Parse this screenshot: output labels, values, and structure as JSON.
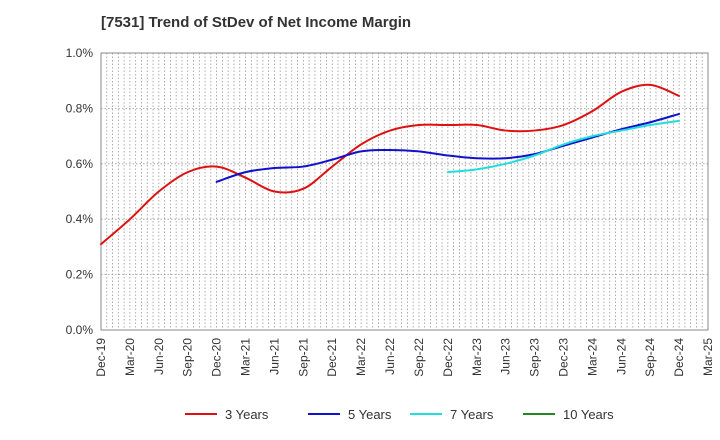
{
  "chart_data": {
    "type": "line",
    "title": "[7531]  Trend of StDev of Net Income Margin",
    "xlabel": "",
    "ylabel": "",
    "ylim": [
      0,
      1.0
    ],
    "grid": true,
    "legend_position": "bottom",
    "y_ticks": [
      "0.0%",
      "0.2%",
      "0.4%",
      "0.6%",
      "0.8%",
      "1.0%"
    ],
    "x_ticks": [
      "Dec-19",
      "Mar-20",
      "Jun-20",
      "Sep-20",
      "Dec-20",
      "Mar-21",
      "Jun-21",
      "Sep-21",
      "Dec-21",
      "Mar-22",
      "Jun-22",
      "Sep-22",
      "Dec-22",
      "Mar-23",
      "Jun-23",
      "Sep-23",
      "Dec-23",
      "Mar-24",
      "Jun-24",
      "Sep-24",
      "Dec-24",
      "Mar-25"
    ],
    "series": [
      {
        "name": "3 Years",
        "color": "#dd1111",
        "points": [
          [
            "Dec-19",
            0.31
          ],
          [
            "Mar-20",
            0.4
          ],
          [
            "Jun-20",
            0.5
          ],
          [
            "Sep-20",
            0.57
          ],
          [
            "Dec-20",
            0.59
          ],
          [
            "Mar-21",
            0.55
          ],
          [
            "Jun-21",
            0.5
          ],
          [
            "Sep-21",
            0.51
          ],
          [
            "Dec-21",
            0.59
          ],
          [
            "Mar-22",
            0.67
          ],
          [
            "Jun-22",
            0.72
          ],
          [
            "Sep-22",
            0.74
          ],
          [
            "Dec-22",
            0.74
          ],
          [
            "Mar-23",
            0.74
          ],
          [
            "Jun-23",
            0.72
          ],
          [
            "Sep-23",
            0.72
          ],
          [
            "Dec-23",
            0.74
          ],
          [
            "Mar-24",
            0.79
          ],
          [
            "Jun-24",
            0.86
          ],
          [
            "Sep-24",
            0.885
          ],
          [
            "Dec-24",
            0.845
          ]
        ]
      },
      {
        "name": "5 Years",
        "color": "#1111cc",
        "points": [
          [
            "Dec-20",
            0.535
          ],
          [
            "Mar-21",
            0.57
          ],
          [
            "Jun-21",
            0.585
          ],
          [
            "Sep-21",
            0.59
          ],
          [
            "Dec-21",
            0.615
          ],
          [
            "Mar-22",
            0.645
          ],
          [
            "Jun-22",
            0.65
          ],
          [
            "Sep-22",
            0.645
          ],
          [
            "Dec-22",
            0.63
          ],
          [
            "Mar-23",
            0.62
          ],
          [
            "Jun-23",
            0.62
          ],
          [
            "Sep-23",
            0.635
          ],
          [
            "Dec-23",
            0.665
          ],
          [
            "Mar-24",
            0.695
          ],
          [
            "Jun-24",
            0.725
          ],
          [
            "Sep-24",
            0.75
          ],
          [
            "Dec-24",
            0.78
          ]
        ]
      },
      {
        "name": "7 Years",
        "color": "#22dddd",
        "points": [
          [
            "Dec-22",
            0.57
          ],
          [
            "Mar-23",
            0.58
          ],
          [
            "Jun-23",
            0.6
          ],
          [
            "Sep-23",
            0.63
          ],
          [
            "Dec-23",
            0.67
          ],
          [
            "Mar-24",
            0.7
          ],
          [
            "Jun-24",
            0.72
          ],
          [
            "Sep-24",
            0.74
          ],
          [
            "Dec-24",
            0.755
          ]
        ]
      },
      {
        "name": "10 Years",
        "color": "#228822",
        "points": []
      }
    ]
  }
}
